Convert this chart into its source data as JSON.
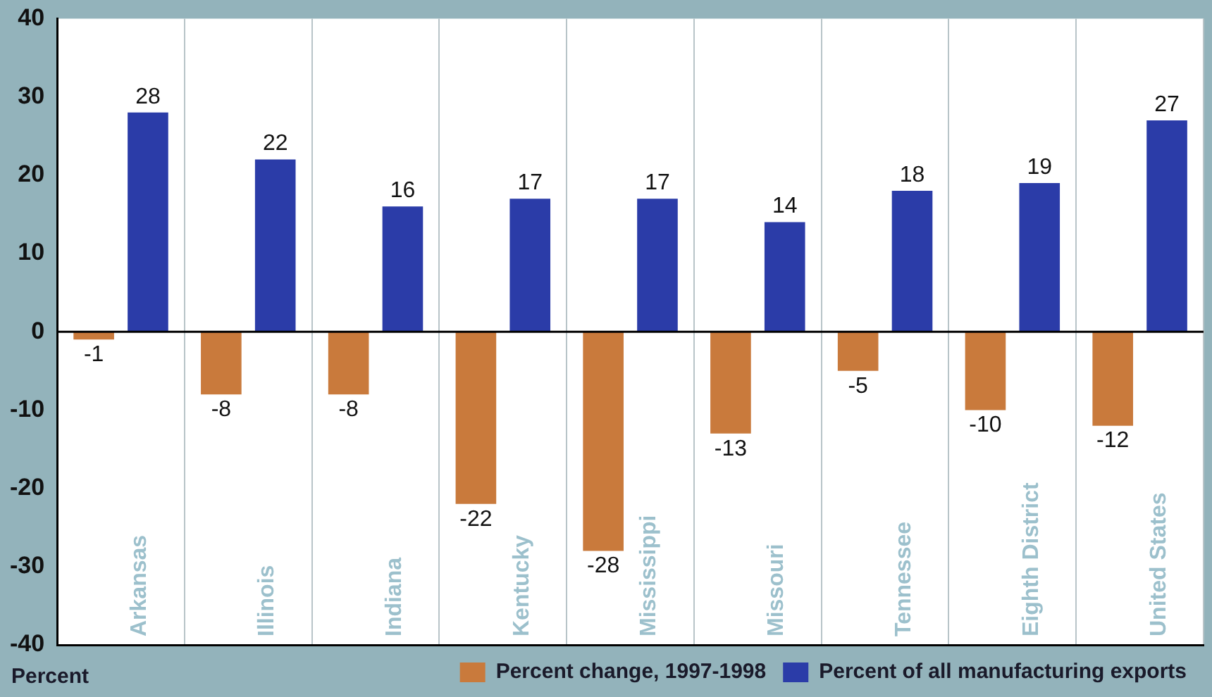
{
  "chart_data": {
    "type": "bar",
    "ylabel": "Percent",
    "categories": [
      "Arkansas",
      "Illinois",
      "Indiana",
      "Kentucky",
      "Mississippi",
      "Missouri",
      "Tennessee",
      "Eighth District",
      "United States"
    ],
    "series": [
      {
        "name": "Percent change, 1997-1998",
        "color": "#c97a3c",
        "values": [
          -1,
          -8,
          -8,
          -22,
          -28,
          -13,
          -5,
          -10,
          -12
        ]
      },
      {
        "name": "Percent of all manufacturing exports",
        "color": "#2b3ca8",
        "values": [
          28,
          22,
          16,
          17,
          17,
          14,
          18,
          19,
          27
        ]
      }
    ],
    "ylim": [
      -40,
      40
    ],
    "yticks": [
      -40,
      -30,
      -20,
      -10,
      0,
      10,
      20,
      30,
      40
    ],
    "grid": "x",
    "ref_lines": [
      {
        "axis": "y",
        "value": 0,
        "color": "#000000"
      }
    ],
    "legend": "bottom",
    "data_labels": true
  }
}
